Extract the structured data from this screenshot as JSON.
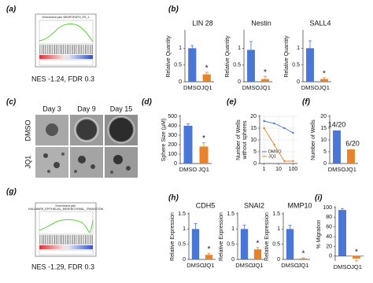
{
  "panel_labels": [
    "(a)",
    "(b)",
    "(c)",
    "(d)",
    "(e)",
    "(f)",
    "(g)",
    "(h)",
    "(i)"
  ],
  "gsea": [
    {
      "title": "Enrichment plot: BENPORATH_ES_1",
      "caption": "NES -1.24, FDR 0.3"
    },
    {
      "title": "Enrichment plot:",
      "subtitle": "HALLMARK_EPITHELIAL_MESENCHYMAL_TRANSITION",
      "caption": "NES -1.29, FDR 0.3"
    }
  ],
  "images": {
    "columns": [
      "Day 3",
      "Day 9",
      "Day 15"
    ],
    "rows": [
      "DMSO",
      "JQ1"
    ]
  },
  "chart_data": [
    {
      "type": "bar",
      "title": "LIN 28",
      "y_label": "Relative Quantity",
      "categories": [
        "DMSO",
        "JQ1"
      ],
      "values": [
        1.0,
        0.22
      ],
      "errors": [
        0.08,
        0.06
      ],
      "colors": [
        "#4a76d6",
        "#e8822b"
      ],
      "ylim": [
        0,
        1.5
      ],
      "yticks": [
        0,
        0.5,
        1
      ],
      "annotation": "*"
    },
    {
      "type": "bar",
      "title": "Nestin",
      "y_label": "Relative Quantity",
      "categories": [
        "DMSO",
        "JQ1"
      ],
      "values": [
        0.95,
        0.08
      ],
      "errors": [
        0.25,
        0.08
      ],
      "colors": [
        "#4a76d6",
        "#e8822b"
      ],
      "ylim": [
        0,
        1.5
      ],
      "yticks": [
        0,
        0.5,
        1
      ],
      "annotation": "*"
    },
    {
      "type": "bar",
      "title": "SALL4",
      "y_label": "Relative Quantity",
      "categories": [
        "DMSO",
        "JQ1"
      ],
      "values": [
        1.0,
        0.08
      ],
      "errors": [
        0.22,
        0.04
      ],
      "colors": [
        "#4a76d6",
        "#e8822b"
      ],
      "ylim": [
        0,
        1.5
      ],
      "yticks": [
        0,
        0.5,
        1
      ],
      "annotation": "*"
    },
    {
      "type": "bar",
      "y_label": "Sphere Size (µM)",
      "categories": [
        "DMSO",
        "JQ1"
      ],
      "values": [
        400,
        180
      ],
      "errors": [
        20,
        40
      ],
      "colors": [
        "#4a76d6",
        "#e8822b"
      ],
      "ylim": [
        0,
        500
      ],
      "yticks": [
        0,
        100,
        200,
        300,
        400,
        500
      ],
      "annotation": "*"
    },
    {
      "type": "line",
      "y_label": [
        "Number of Wells",
        "without spheres"
      ],
      "x": [
        1,
        5,
        25,
        100
      ],
      "log_x": true,
      "grid": true,
      "series": [
        {
          "name": "DMSO",
          "color": "#4a76d6",
          "values": [
            18,
            17,
            15,
            13
          ]
        },
        {
          "name": "JQ1",
          "color": "#e8822b",
          "values": [
            15,
            8,
            1,
            1
          ]
        }
      ],
      "xlim": [
        0.5,
        200
      ],
      "xticks": [
        1,
        10,
        100
      ],
      "ylim": [
        0,
        20
      ],
      "yticks": [
        0,
        5,
        10,
        15,
        20
      ],
      "legend": "bottom-left"
    },
    {
      "type": "bar",
      "y_label": "Number of Wells",
      "categories": [
        "DMSO",
        "JQ1"
      ],
      "values": [
        14,
        6
      ],
      "value_labels": [
        "14/20",
        "6/20"
      ],
      "colors": [
        "#4a76d6",
        "#e8822b"
      ],
      "ylim": [
        0,
        20
      ],
      "yticks": [
        0,
        5,
        10,
        15,
        20
      ]
    },
    {
      "type": "bar",
      "title": "CDH5",
      "y_label": "Relative Expression",
      "categories": [
        "DMSO",
        "JQ1"
      ],
      "values": [
        1.0,
        0.15
      ],
      "errors": [
        0.18,
        0.05
      ],
      "colors": [
        "#4a76d6",
        "#e8822b"
      ],
      "ylim": [
        0,
        1.5
      ],
      "yticks": [
        0,
        0.5,
        1,
        1.5
      ],
      "annotation": "*"
    },
    {
      "type": "bar",
      "title": "SNAI2",
      "y_label": "Relative Expression",
      "categories": [
        "DMSO",
        "JQ1"
      ],
      "values": [
        1.0,
        0.33
      ],
      "errors": [
        0.13,
        0.06
      ],
      "colors": [
        "#4a76d6",
        "#e8822b"
      ],
      "ylim": [
        0,
        1.5
      ],
      "yticks": [
        0,
        0.5,
        1,
        1.5
      ],
      "annotation": "*"
    },
    {
      "type": "bar",
      "title": "MMP10",
      "y_label": "Relative Expression",
      "categories": [
        "DMSO",
        "JQ1"
      ],
      "values": [
        1.0,
        0.03
      ],
      "errors": [
        0.12,
        0.02
      ],
      "colors": [
        "#4a76d6",
        "#e8822b"
      ],
      "ylim": [
        0,
        1.5
      ],
      "yticks": [
        0,
        0.5,
        1,
        1.5
      ],
      "annotation": "*"
    },
    {
      "type": "bar",
      "y_label": "% Migration",
      "categories": [
        "DMSO",
        "JQ1"
      ],
      "values": [
        95,
        -5
      ],
      "errors": [
        3,
        5
      ],
      "colors": [
        "#4a76d6",
        "#e8822b"
      ],
      "ylim": [
        -10,
        100
      ],
      "yticks": [
        0,
        20,
        40,
        60,
        80,
        100
      ],
      "annotation": "*"
    }
  ]
}
